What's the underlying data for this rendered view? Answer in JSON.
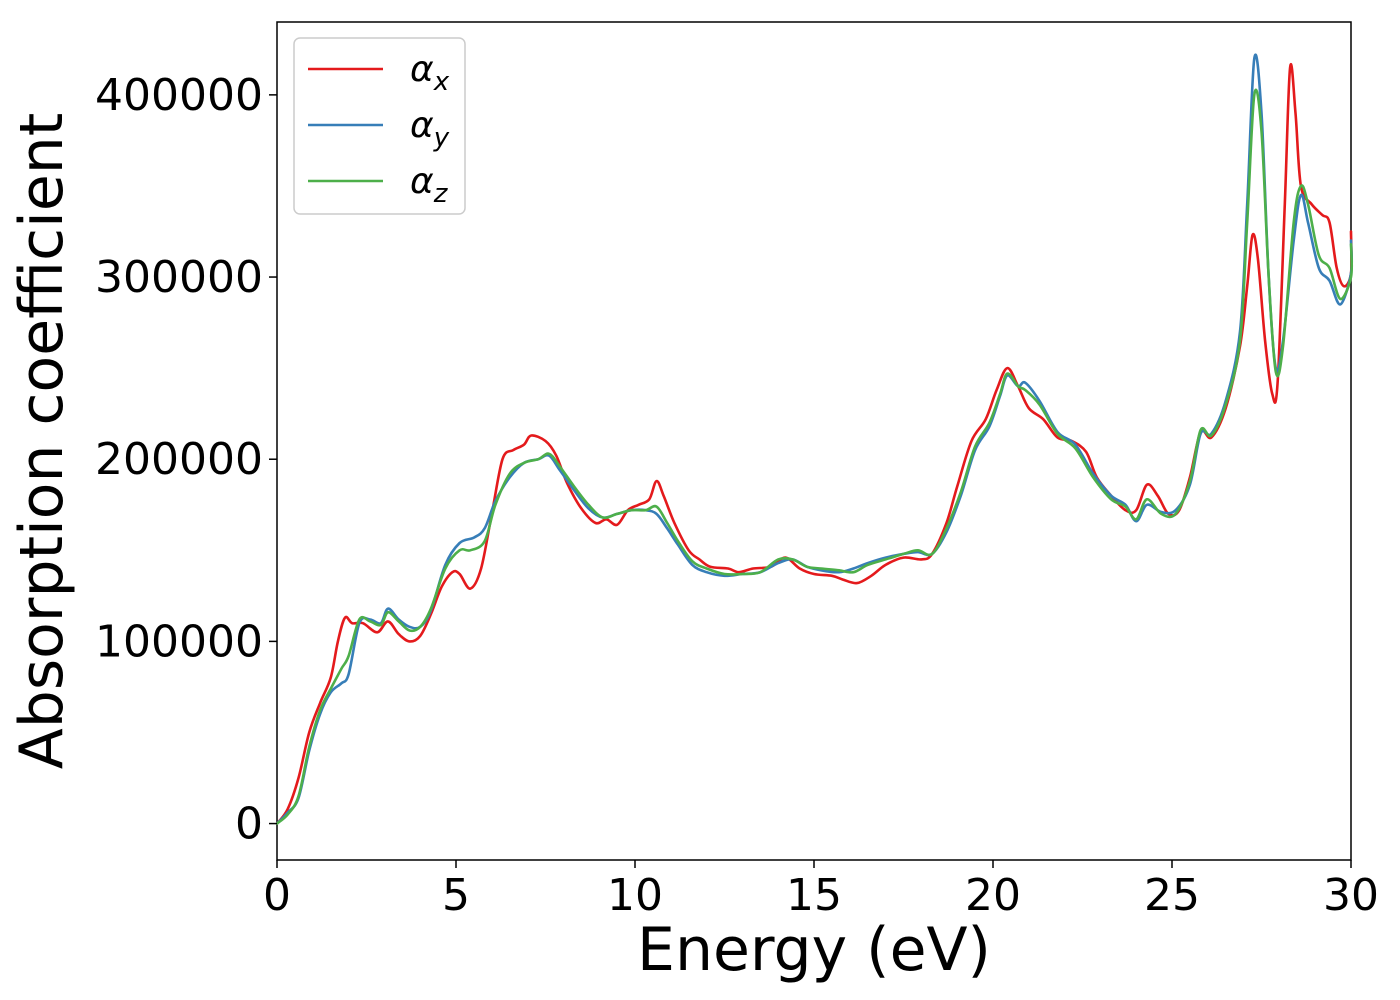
{
  "chart_data": {
    "type": "line",
    "xlabel": "Energy (eV)",
    "ylabel": "Absorption coefficient",
    "xlim": [
      0,
      30
    ],
    "ylim": [
      -20000,
      440000
    ],
    "xticks": [
      0,
      5,
      10,
      15,
      20,
      25,
      30
    ],
    "xtick_labels": [
      "0",
      "5",
      "10",
      "15",
      "20",
      "25",
      "30"
    ],
    "yticks": [
      0,
      100000,
      200000,
      300000,
      400000
    ],
    "ytick_labels": [
      "0",
      "100000",
      "200000",
      "300000",
      "400000"
    ],
    "grid": false,
    "legend_position": "top-left",
    "series": [
      {
        "name": "αx",
        "name_base": "α",
        "name_sub": "x",
        "color": "#e41a1c",
        "points": [
          [
            0,
            0
          ],
          [
            0.3,
            8000
          ],
          [
            0.6,
            25000
          ],
          [
            0.9,
            50000
          ],
          [
            1.2,
            66000
          ],
          [
            1.5,
            80000
          ],
          [
            1.7,
            100000
          ],
          [
            1.9,
            113000
          ],
          [
            2.1,
            110000
          ],
          [
            2.4,
            110000
          ],
          [
            2.8,
            105000
          ],
          [
            3.1,
            111000
          ],
          [
            3.4,
            104000
          ],
          [
            3.7,
            100000
          ],
          [
            4.0,
            103000
          ],
          [
            4.3,
            115000
          ],
          [
            4.6,
            130000
          ],
          [
            4.9,
            138000
          ],
          [
            5.1,
            137000
          ],
          [
            5.4,
            129000
          ],
          [
            5.7,
            140000
          ],
          [
            6.0,
            170000
          ],
          [
            6.3,
            200000
          ],
          [
            6.6,
            205000
          ],
          [
            6.9,
            208000
          ],
          [
            7.1,
            213000
          ],
          [
            7.5,
            210000
          ],
          [
            7.8,
            202000
          ],
          [
            8.1,
            187000
          ],
          [
            8.5,
            173000
          ],
          [
            8.9,
            165000
          ],
          [
            9.2,
            167000
          ],
          [
            9.5,
            164000
          ],
          [
            9.8,
            172000
          ],
          [
            10.1,
            175000
          ],
          [
            10.4,
            178000
          ],
          [
            10.6,
            188000
          ],
          [
            10.8,
            180000
          ],
          [
            11.1,
            165000
          ],
          [
            11.5,
            150000
          ],
          [
            11.8,
            145000
          ],
          [
            12.1,
            141000
          ],
          [
            12.6,
            140000
          ],
          [
            12.9,
            138000
          ],
          [
            13.3,
            140000
          ],
          [
            13.8,
            141000
          ],
          [
            14.2,
            146000
          ],
          [
            14.6,
            140000
          ],
          [
            15.0,
            137000
          ],
          [
            15.5,
            136000
          ],
          [
            15.8,
            134000
          ],
          [
            16.2,
            132000
          ],
          [
            16.6,
            136000
          ],
          [
            17.0,
            142000
          ],
          [
            17.5,
            146000
          ],
          [
            18.0,
            145000
          ],
          [
            18.3,
            148000
          ],
          [
            18.7,
            165000
          ],
          [
            19.0,
            185000
          ],
          [
            19.4,
            210000
          ],
          [
            19.8,
            222000
          ],
          [
            20.1,
            238000
          ],
          [
            20.4,
            250000
          ],
          [
            20.7,
            240000
          ],
          [
            21.0,
            228000
          ],
          [
            21.4,
            222000
          ],
          [
            21.8,
            212000
          ],
          [
            22.2,
            210000
          ],
          [
            22.6,
            204000
          ],
          [
            22.9,
            190000
          ],
          [
            23.3,
            180000
          ],
          [
            23.7,
            172000
          ],
          [
            24.0,
            172000
          ],
          [
            24.3,
            186000
          ],
          [
            24.6,
            180000
          ],
          [
            24.9,
            170000
          ],
          [
            25.2,
            172000
          ],
          [
            25.5,
            190000
          ],
          [
            25.8,
            215000
          ],
          [
            26.1,
            212000
          ],
          [
            26.5,
            228000
          ],
          [
            26.9,
            262000
          ],
          [
            27.1,
            295000
          ],
          [
            27.25,
            323000
          ],
          [
            27.4,
            310000
          ],
          [
            27.6,
            265000
          ],
          [
            27.8,
            236000
          ],
          [
            27.95,
            242000
          ],
          [
            28.15,
            340000
          ],
          [
            28.3,
            415000
          ],
          [
            28.45,
            390000
          ],
          [
            28.6,
            350000
          ],
          [
            28.9,
            340000
          ],
          [
            29.2,
            334000
          ],
          [
            29.4,
            330000
          ],
          [
            29.6,
            305000
          ],
          [
            29.8,
            295000
          ],
          [
            30.0,
            302000
          ],
          [
            30.0,
            325000
          ]
        ]
      },
      {
        "name": "αy",
        "name_base": "α",
        "name_sub": "y",
        "color": "#377eb8",
        "points": [
          [
            0,
            0
          ],
          [
            0.3,
            6000
          ],
          [
            0.6,
            14000
          ],
          [
            0.9,
            40000
          ],
          [
            1.2,
            60000
          ],
          [
            1.5,
            72000
          ],
          [
            1.8,
            77000
          ],
          [
            2.0,
            82000
          ],
          [
            2.3,
            110000
          ],
          [
            2.6,
            112000
          ],
          [
            2.9,
            110000
          ],
          [
            3.1,
            118000
          ],
          [
            3.4,
            112000
          ],
          [
            3.7,
            108000
          ],
          [
            4.0,
            108000
          ],
          [
            4.3,
            117000
          ],
          [
            4.7,
            142000
          ],
          [
            5.1,
            154000
          ],
          [
            5.5,
            157000
          ],
          [
            5.8,
            162000
          ],
          [
            6.1,
            177000
          ],
          [
            6.5,
            190000
          ],
          [
            6.9,
            198000
          ],
          [
            7.3,
            200000
          ],
          [
            7.6,
            202000
          ],
          [
            7.9,
            194000
          ],
          [
            8.3,
            183000
          ],
          [
            8.7,
            173000
          ],
          [
            9.1,
            168000
          ],
          [
            9.5,
            170000
          ],
          [
            9.9,
            172000
          ],
          [
            10.3,
            172000
          ],
          [
            10.6,
            170000
          ],
          [
            10.9,
            162000
          ],
          [
            11.2,
            153000
          ],
          [
            11.6,
            142000
          ],
          [
            12.0,
            138000
          ],
          [
            12.5,
            136000
          ],
          [
            13.0,
            137000
          ],
          [
            13.5,
            138000
          ],
          [
            14.0,
            143000
          ],
          [
            14.4,
            145000
          ],
          [
            14.8,
            141000
          ],
          [
            15.2,
            139000
          ],
          [
            15.7,
            138000
          ],
          [
            16.1,
            140000
          ],
          [
            16.5,
            143000
          ],
          [
            17.0,
            146000
          ],
          [
            17.5,
            148000
          ],
          [
            17.9,
            149000
          ],
          [
            18.3,
            148000
          ],
          [
            18.7,
            160000
          ],
          [
            19.1,
            180000
          ],
          [
            19.5,
            205000
          ],
          [
            19.9,
            218000
          ],
          [
            20.2,
            235000
          ],
          [
            20.4,
            246000
          ],
          [
            20.7,
            240000
          ],
          [
            20.9,
            242000
          ],
          [
            21.3,
            232000
          ],
          [
            21.8,
            215000
          ],
          [
            22.3,
            208000
          ],
          [
            22.8,
            192000
          ],
          [
            23.3,
            180000
          ],
          [
            23.7,
            175000
          ],
          [
            24.0,
            166000
          ],
          [
            24.3,
            175000
          ],
          [
            24.7,
            171000
          ],
          [
            25.1,
            172000
          ],
          [
            25.5,
            186000
          ],
          [
            25.8,
            214000
          ],
          [
            26.1,
            214000
          ],
          [
            26.5,
            232000
          ],
          [
            26.9,
            270000
          ],
          [
            27.1,
            340000
          ],
          [
            27.3,
            420000
          ],
          [
            27.5,
            390000
          ],
          [
            27.7,
            300000
          ],
          [
            27.9,
            250000
          ],
          [
            28.1,
            265000
          ],
          [
            28.4,
            320000
          ],
          [
            28.6,
            345000
          ],
          [
            28.8,
            330000
          ],
          [
            29.1,
            305000
          ],
          [
            29.4,
            298000
          ],
          [
            29.7,
            285000
          ],
          [
            30.0,
            302000
          ],
          [
            30.0,
            320000
          ]
        ]
      },
      {
        "name": "αz",
        "name_base": "α",
        "name_sub": "z",
        "color": "#4daf4a",
        "points": [
          [
            0,
            0
          ],
          [
            0.3,
            5000
          ],
          [
            0.6,
            15000
          ],
          [
            0.9,
            42000
          ],
          [
            1.2,
            62000
          ],
          [
            1.5,
            74000
          ],
          [
            1.8,
            85000
          ],
          [
            2.0,
            92000
          ],
          [
            2.3,
            112000
          ],
          [
            2.6,
            111000
          ],
          [
            2.9,
            109000
          ],
          [
            3.1,
            116000
          ],
          [
            3.4,
            111000
          ],
          [
            3.7,
            106000
          ],
          [
            4.0,
            108000
          ],
          [
            4.3,
            118000
          ],
          [
            4.7,
            140000
          ],
          [
            5.1,
            150000
          ],
          [
            5.4,
            150000
          ],
          [
            5.8,
            155000
          ],
          [
            6.1,
            175000
          ],
          [
            6.5,
            192000
          ],
          [
            6.9,
            198000
          ],
          [
            7.3,
            200000
          ],
          [
            7.6,
            203000
          ],
          [
            7.9,
            196000
          ],
          [
            8.3,
            185000
          ],
          [
            8.7,
            175000
          ],
          [
            9.1,
            168000
          ],
          [
            9.5,
            170000
          ],
          [
            9.9,
            172000
          ],
          [
            10.3,
            172000
          ],
          [
            10.6,
            174000
          ],
          [
            10.9,
            165000
          ],
          [
            11.2,
            155000
          ],
          [
            11.6,
            144000
          ],
          [
            12.0,
            140000
          ],
          [
            12.5,
            137000
          ],
          [
            13.0,
            137000
          ],
          [
            13.5,
            138000
          ],
          [
            14.0,
            145000
          ],
          [
            14.4,
            145000
          ],
          [
            14.8,
            141000
          ],
          [
            15.2,
            140000
          ],
          [
            15.7,
            139000
          ],
          [
            16.1,
            138000
          ],
          [
            16.5,
            142000
          ],
          [
            17.0,
            145000
          ],
          [
            17.5,
            148000
          ],
          [
            17.9,
            150000
          ],
          [
            18.3,
            148000
          ],
          [
            18.7,
            162000
          ],
          [
            19.1,
            182000
          ],
          [
            19.5,
            207000
          ],
          [
            19.9,
            220000
          ],
          [
            20.2,
            236000
          ],
          [
            20.4,
            247000
          ],
          [
            20.7,
            240000
          ],
          [
            20.9,
            238000
          ],
          [
            21.3,
            230000
          ],
          [
            21.8,
            214000
          ],
          [
            22.3,
            206000
          ],
          [
            22.8,
            190000
          ],
          [
            23.3,
            178000
          ],
          [
            23.7,
            174000
          ],
          [
            24.0,
            167000
          ],
          [
            24.3,
            178000
          ],
          [
            24.7,
            170000
          ],
          [
            25.1,
            170000
          ],
          [
            25.5,
            188000
          ],
          [
            25.8,
            216000
          ],
          [
            26.1,
            213000
          ],
          [
            26.5,
            230000
          ],
          [
            26.9,
            265000
          ],
          [
            27.1,
            330000
          ],
          [
            27.3,
            400000
          ],
          [
            27.5,
            380000
          ],
          [
            27.7,
            300000
          ],
          [
            27.9,
            248000
          ],
          [
            28.1,
            262000
          ],
          [
            28.4,
            330000
          ],
          [
            28.6,
            350000
          ],
          [
            28.8,
            340000
          ],
          [
            29.1,
            312000
          ],
          [
            29.4,
            305000
          ],
          [
            29.7,
            288000
          ],
          [
            30.0,
            300000
          ],
          [
            30.0,
            318000
          ]
        ]
      }
    ]
  }
}
